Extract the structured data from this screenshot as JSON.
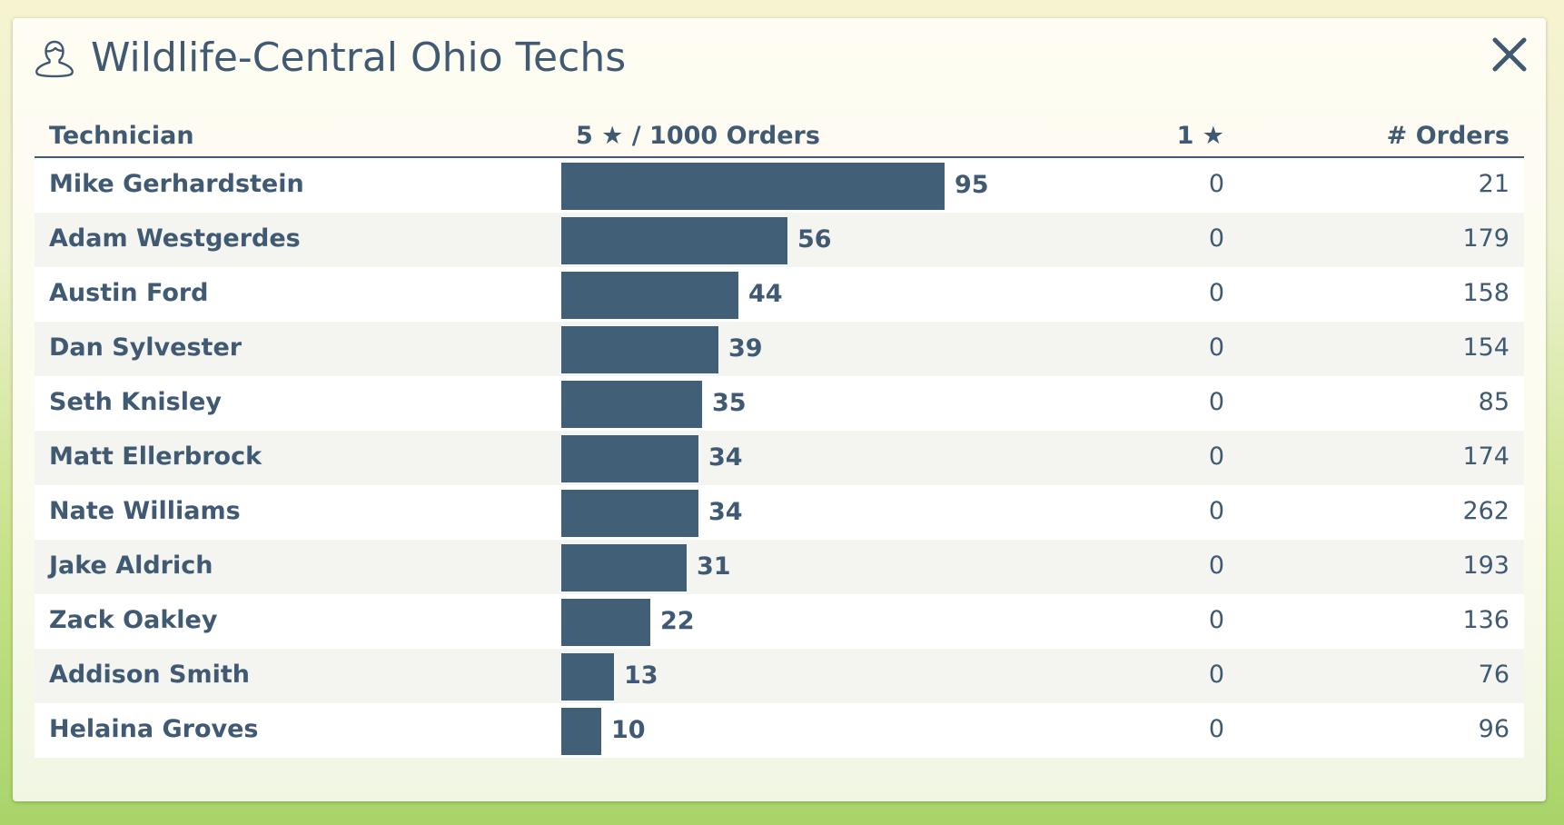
{
  "header": {
    "title": "Wildlife-Central Ohio Techs",
    "icon": "user-icon",
    "close_icon": "close-icon"
  },
  "colors": {
    "bar": "#415f77",
    "text": "#3f5a72"
  },
  "table": {
    "columns": {
      "technician": "Technician",
      "rating": "5 ★ / 1000 Orders",
      "one_star": "1 ★",
      "orders": "# Orders"
    },
    "max_rating": 95,
    "rows": [
      {
        "name": "Mike Gerhardstein",
        "rating": 95,
        "one_star": 0,
        "orders": 21
      },
      {
        "name": "Adam Westgerdes",
        "rating": 56,
        "one_star": 0,
        "orders": 179
      },
      {
        "name": "Austin Ford",
        "rating": 44,
        "one_star": 0,
        "orders": 158
      },
      {
        "name": "Dan Sylvester",
        "rating": 39,
        "one_star": 0,
        "orders": 154
      },
      {
        "name": "Seth Knisley",
        "rating": 35,
        "one_star": 0,
        "orders": 85
      },
      {
        "name": "Matt Ellerbrock",
        "rating": 34,
        "one_star": 0,
        "orders": 174
      },
      {
        "name": "Nate Williams",
        "rating": 34,
        "one_star": 0,
        "orders": 262
      },
      {
        "name": "Jake Aldrich",
        "rating": 31,
        "one_star": 0,
        "orders": 193
      },
      {
        "name": "Zack Oakley",
        "rating": 22,
        "one_star": 0,
        "orders": 136
      },
      {
        "name": "Addison Smith",
        "rating": 13,
        "one_star": 0,
        "orders": 76
      },
      {
        "name": "Helaina Groves",
        "rating": 10,
        "one_star": 0,
        "orders": 96
      }
    ]
  }
}
